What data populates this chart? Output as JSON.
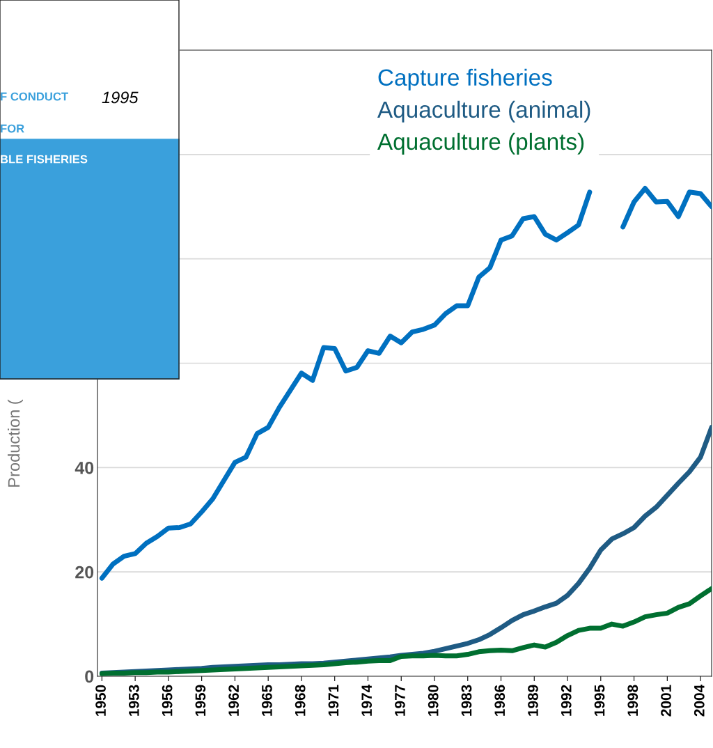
{
  "chart_data": {
    "type": "line",
    "ylabel": "Production (",
    "x": [
      1950,
      1951,
      1952,
      1953,
      1954,
      1955,
      1956,
      1957,
      1958,
      1959,
      1960,
      1961,
      1962,
      1963,
      1964,
      1965,
      1966,
      1967,
      1968,
      1969,
      1970,
      1971,
      1972,
      1973,
      1974,
      1975,
      1976,
      1977,
      1978,
      1979,
      1980,
      1981,
      1982,
      1983,
      1984,
      1985,
      1986,
      1987,
      1988,
      1989,
      1990,
      1991,
      1992,
      1993,
      1994,
      1995,
      1996,
      1997,
      1998,
      1999,
      2000,
      2001,
      2002,
      2003,
      2004,
      2005
    ],
    "series": [
      {
        "name": "Capture fisheries",
        "color": "#0070c0",
        "values": [
          18.8,
          21.5,
          23,
          23.5,
          25.5,
          26.8,
          28.4,
          28.5,
          29.2,
          31.5,
          34,
          37.5,
          41,
          42,
          46.5,
          47.7,
          51.5,
          54.8,
          58.1,
          56.7,
          63,
          62.8,
          58.5,
          59.2,
          62.4,
          61.9,
          65.2,
          63.9,
          66,
          66.5,
          67.3,
          69.5,
          71,
          71,
          76.5,
          78.3,
          83.6,
          84.4,
          87.7,
          88.1,
          84.7,
          83.6,
          85,
          86.5,
          92.8,
          null,
          null,
          86.1,
          90.9,
          93.5,
          90.9,
          91,
          88.1,
          92.8,
          92.5,
          90
        ]
      },
      {
        "name": "Aquaculture (animal)",
        "color": "#1f5b84",
        "values": [
          0.6,
          0.7,
          0.8,
          0.9,
          1,
          1.1,
          1.2,
          1.3,
          1.4,
          1.5,
          1.7,
          1.8,
          1.9,
          2,
          2.1,
          2.2,
          2.2,
          2.3,
          2.4,
          2.4,
          2.5,
          2.7,
          2.9,
          3.1,
          3.3,
          3.5,
          3.7,
          4,
          4.2,
          4.4,
          4.8,
          5.3,
          5.8,
          6.3,
          7,
          8,
          9.3,
          10.7,
          11.8,
          12.5,
          13.3,
          14,
          15.5,
          17.8,
          20.7,
          24.2,
          26.3,
          27.3,
          28.5,
          30.7,
          32.4,
          34.7,
          37,
          39.2,
          42,
          47.7
        ]
      },
      {
        "name": "Aquaculture (plants)",
        "color": "#006f30",
        "values": [
          0.5,
          0.6,
          0.6,
          0.7,
          0.7,
          0.8,
          0.8,
          0.9,
          1,
          1.1,
          1.2,
          1.3,
          1.4,
          1.5,
          1.6,
          1.7,
          1.8,
          1.9,
          2,
          2.1,
          2.2,
          2.4,
          2.6,
          2.7,
          2.9,
          3,
          3,
          3.8,
          3.9,
          3.9,
          4,
          3.9,
          3.9,
          4.2,
          4.7,
          4.9,
          5,
          4.9,
          5.5,
          6,
          5.6,
          6.5,
          7.8,
          8.8,
          9.2,
          9.2,
          10,
          9.6,
          10.4,
          11.4,
          11.8,
          12.1,
          13.2,
          13.9,
          15.4,
          16.8
        ]
      }
    ],
    "xlim": [
      1949.6,
      2005
    ],
    "xticks": [
      1950,
      1953,
      1956,
      1959,
      1962,
      1965,
      1968,
      1971,
      1974,
      1977,
      1980,
      1983,
      1986,
      1989,
      1992,
      1995,
      1998,
      2001,
      2004
    ],
    "ylim": [
      0,
      120
    ],
    "yticks": [
      0,
      20,
      40,
      {
        "value": 60,
        "label": null
      },
      {
        "value": 80,
        "label": null
      },
      {
        "value": 100,
        "label": null
      }
    ],
    "grid": "y",
    "legend": "top",
    "line_style": "solid",
    "marker": "none",
    "annotations": [
      "F CONDUCT",
      "1995",
      "FOR",
      "BLE FISHERIES"
    ]
  }
}
